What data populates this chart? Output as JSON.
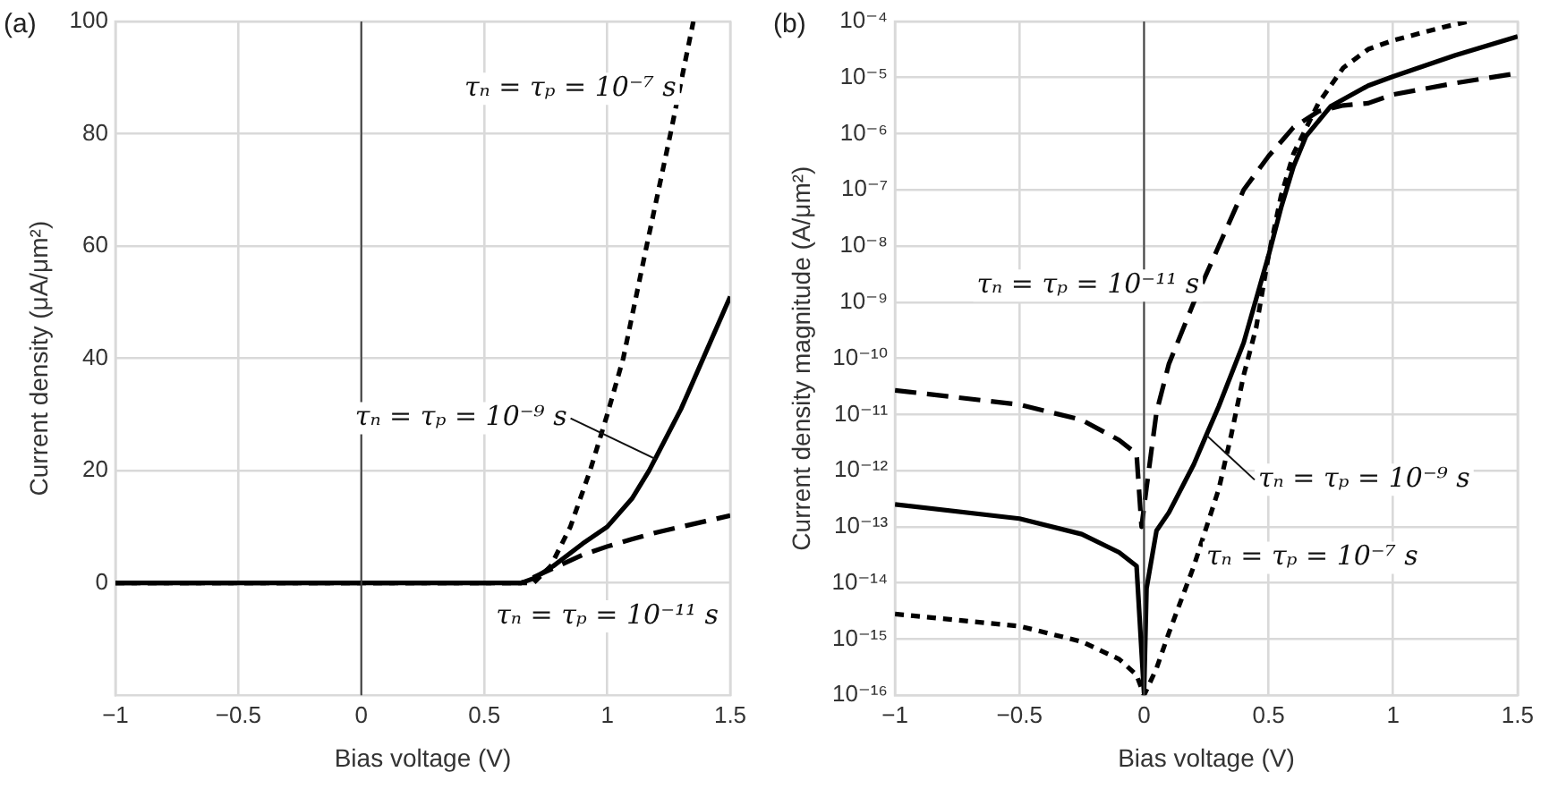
{
  "chart_data": [
    {
      "type": "line",
      "title": "(a)",
      "xlabel": "Bias voltage (V)",
      "ylabel": "Current density (μA/μm²)",
      "xlim": [
        -1,
        1.5
      ],
      "xticks": [
        -1,
        -0.5,
        0,
        0.5,
        1,
        1.5
      ],
      "ylim": [
        -20,
        100
      ],
      "yticks": [
        0,
        20,
        40,
        60,
        80,
        100
      ],
      "grid": true,
      "marker": "none",
      "ref_lines": [
        {
          "axis": "x",
          "value": 0,
          "color": "#404040"
        }
      ],
      "series": [
        {
          "color": "#000000",
          "line_style": "dotted",
          "x": [
            -1,
            0,
            0.5,
            0.7,
            0.77,
            0.85,
            0.93,
            1.0,
            1.065,
            1.16,
            1.257,
            1.35
          ],
          "values": [
            0,
            0,
            0,
            0,
            3,
            10,
            20,
            30,
            40,
            60,
            80,
            100
          ]
        },
        {
          "color": "#000000",
          "line_style": "solid",
          "x": [
            -1,
            0,
            0.5,
            0.65,
            0.7,
            0.78,
            0.9,
            1.0,
            1.1,
            1.17,
            1.3,
            1.39,
            1.5
          ],
          "values": [
            0,
            0,
            0,
            0,
            0.8,
            3,
            7,
            10,
            15,
            20,
            31,
            40,
            51
          ]
        },
        {
          "color": "#000000",
          "line_style": "dashed",
          "x": [
            -1,
            0,
            0.5,
            0.65,
            0.7,
            0.8,
            0.9,
            1.0,
            1.1,
            1.2,
            1.3,
            1.4,
            1.5
          ],
          "values": [
            0,
            0,
            0,
            0,
            1,
            3,
            5,
            6.5,
            7.8,
            9,
            10,
            11,
            12
          ]
        }
      ],
      "annotations": [
        "τₙ = τₚ = 10⁻⁷ s",
        {
          "text": "τₙ = τₚ = 10⁻⁹ s",
          "x": 1.2,
          "y": 22
        },
        "τₙ = τₚ = 10⁻¹¹ s"
      ]
    },
    {
      "type": "line",
      "title": "(b)",
      "xlabel": "Bias voltage (V)",
      "ylabel": "Current density magnitude (A/μm²)",
      "log": "y",
      "xlim": [
        -1,
        1.5
      ],
      "xticks": [
        -1,
        -0.5,
        0,
        0.5,
        1,
        1.5
      ],
      "ylim": [
        1e-16,
        0.0001
      ],
      "yticks": [
        {
          "value": 1e-16,
          "label": "10⁻¹⁶"
        },
        {
          "value": 1e-15,
          "label": "10⁻¹⁵"
        },
        {
          "value": 1e-14,
          "label": "10⁻¹⁴"
        },
        {
          "value": 1e-13,
          "label": "10⁻¹³"
        },
        {
          "value": 1e-12,
          "label": "10⁻¹²"
        },
        {
          "value": 1e-11,
          "label": "10⁻¹¹"
        },
        {
          "value": 1e-10,
          "label": "10⁻¹⁰"
        },
        {
          "value": 1e-09,
          "label": "10⁻⁹"
        },
        {
          "value": 1e-08,
          "label": "10⁻⁸"
        },
        {
          "value": 1e-07,
          "label": "10⁻⁷"
        },
        {
          "value": 1e-06,
          "label": "10⁻⁶"
        },
        {
          "value": 1e-05,
          "label": "10⁻⁵"
        },
        {
          "value": 0.0001,
          "label": "10⁻⁴"
        }
      ],
      "grid": true,
      "marker": "none",
      "ref_lines": [
        {
          "axis": "x",
          "value": 0,
          "color": "#404040"
        }
      ],
      "series": [
        {
          "color": "#000000",
          "line_style": "dashed",
          "x": [
            -1,
            -0.5,
            -0.25,
            -0.1,
            -0.03,
            -0.01,
            0.01,
            0.05,
            0.1,
            0.2,
            0.3,
            0.4,
            0.5,
            0.6,
            0.7,
            0.8,
            0.9,
            1.0,
            1.25,
            1.5
          ],
          "values": [
            2.7e-11,
            1.5e-11,
            8e-12,
            3.5e-12,
            2e-12,
            1e-13,
            5e-13,
            1.1e-11,
            8e-11,
            1e-09,
            1e-08,
            1e-07,
            4e-07,
            1.3e-06,
            2.5e-06,
            3.2e-06,
            3.5e-06,
            5e-06,
            8e-06,
            1.2e-05
          ]
        },
        {
          "color": "#000000",
          "line_style": "solid",
          "x": [
            -1,
            -0.5,
            -0.25,
            -0.1,
            -0.03,
            -0.01,
            0,
            0.01,
            0.05,
            0.1,
            0.2,
            0.25,
            0.3,
            0.4,
            0.5,
            0.55,
            0.6,
            0.65,
            0.75,
            0.9,
            1.0,
            1.25,
            1.5
          ],
          "values": [
            2.5e-13,
            1.4e-13,
            7.4e-14,
            3.5e-14,
            2e-14,
            6e-16,
            1.1e-16,
            8e-15,
            8.5e-14,
            1.8e-13,
            1.3e-12,
            4.3e-12,
            1.4e-11,
            1.9e-10,
            6.8e-09,
            4.8e-08,
            2.6e-07,
            9e-07,
            3.1e-06,
            7.2e-06,
            1.05e-05,
            2.5e-05,
            5.4e-05
          ]
        },
        {
          "color": "#000000",
          "line_style": "dotted",
          "x": [
            -1,
            -0.5,
            -0.25,
            -0.1,
            -0.03,
            0,
            0.05,
            0.1,
            0.2,
            0.3,
            0.35,
            0.4,
            0.45,
            0.5,
            0.55,
            0.6,
            0.7,
            0.8,
            0.9,
            1.0,
            1.2,
            1.3
          ],
          "values": [
            2.8e-15,
            1.7e-15,
            9e-16,
            4.4e-16,
            2.3e-16,
            1e-16,
            3e-16,
            1.3e-15,
            2e-14,
            4.7e-13,
            4.3e-12,
            5e-11,
            3.5e-10,
            6.8e-09,
            7.8e-08,
            4.4e-07,
            3.5e-06,
            1.5e-05,
            3.2e-05,
            4.6e-05,
            7.9e-05,
            0.0001
          ]
        }
      ],
      "annotations": [
        "τₙ = τₚ = 10⁻¹¹ s",
        {
          "text": "τₙ = τₚ = 10⁻⁹ s",
          "x": 0.25,
          "y": 4.3e-12
        },
        "τₙ = τₚ = 10⁻⁷ s"
      ]
    }
  ]
}
